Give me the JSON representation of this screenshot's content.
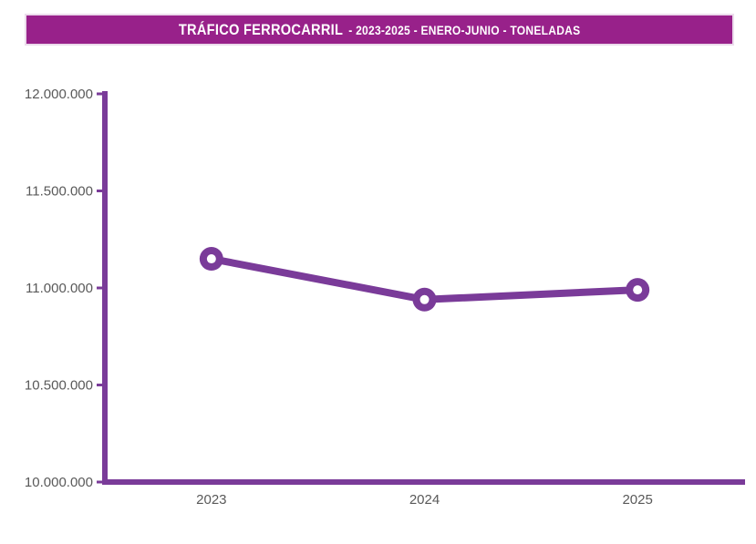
{
  "header": {
    "title": "TRÁFICO FERROCARRIL",
    "subtitle": "- 2023-2025 - ENERO-JUNIO - TONELADAS",
    "banner_color": "#98218a",
    "banner_border_color": "#ecdcec",
    "title_text_color": "#ffffff"
  },
  "chart_data": {
    "type": "line",
    "title": "TRÁFICO FERROCARRIL - 2023-2025 - ENERO-JUNIO - TONELADAS",
    "categories": [
      "2023",
      "2024",
      "2025"
    ],
    "series": [
      {
        "name": "Toneladas",
        "values": [
          11150000,
          10940000,
          10990000
        ]
      }
    ],
    "xlabel": "",
    "ylabel": "",
    "ylim": [
      10000000,
      12000000
    ],
    "ytick_step": 500000,
    "ytick_labels": [
      "10.000.000",
      "10.500.000",
      "11.000.000",
      "11.500.000",
      "12.000.000"
    ],
    "grid": false,
    "legend_position": "none",
    "marker_style": "open-circle",
    "line_color": "#7a3b99",
    "axis_color": "#7a3b99",
    "label_color": "#595959",
    "marker_fill": "#ffffff"
  }
}
